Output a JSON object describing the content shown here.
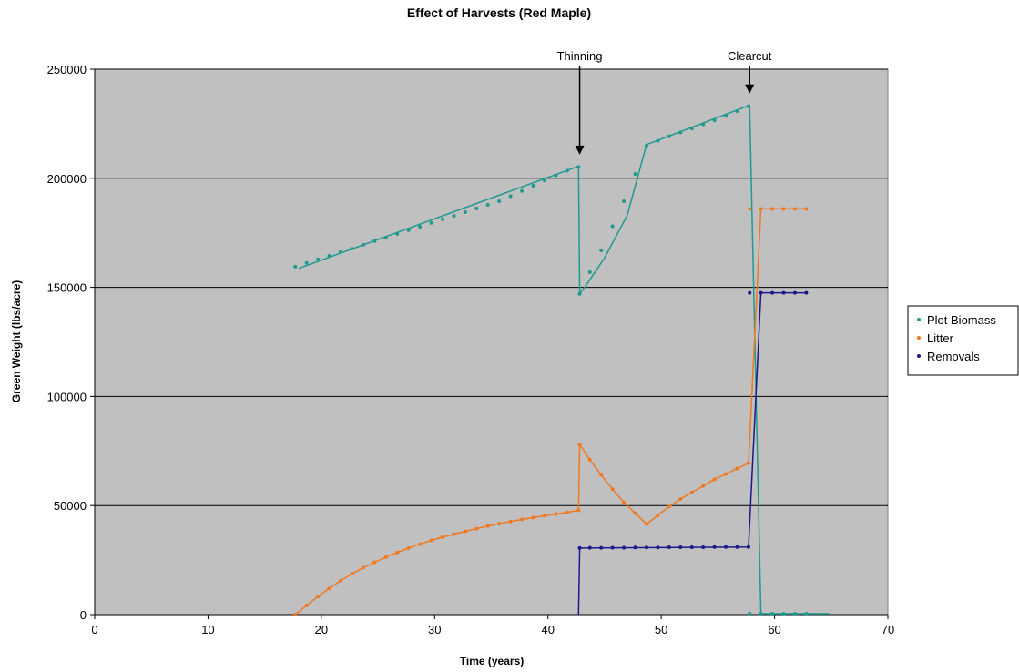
{
  "chart_data": {
    "type": "line",
    "title": "Effect of Harvests (Red Maple)",
    "xlabel": "Time (years)",
    "ylabel": "Green Weight (lbs/acre)",
    "xlim": [
      0,
      70
    ],
    "ylim": [
      0,
      250000
    ],
    "x_ticks": [
      0,
      10,
      20,
      30,
      40,
      50,
      60,
      70
    ],
    "y_ticks": [
      0,
      50000,
      100000,
      150000,
      200000,
      250000
    ],
    "grid": "horizontal",
    "legend": "right",
    "plot_background": "#c0c0c0",
    "annotations": [
      {
        "text": "Thinning",
        "x": 42.8,
        "y": 205000
      },
      {
        "text": "Clearcut",
        "x": 57.8,
        "y": 233000
      }
    ],
    "series": [
      {
        "name": "Plot Biomass",
        "color": "#1f9a8f",
        "points": [
          [
            17.7,
            159500
          ],
          [
            18.7,
            161200
          ],
          [
            19.7,
            162800
          ],
          [
            20.7,
            164500
          ],
          [
            21.7,
            166200
          ],
          [
            22.7,
            167800
          ],
          [
            23.7,
            169500
          ],
          [
            24.7,
            171200
          ],
          [
            25.7,
            172800
          ],
          [
            26.7,
            174500
          ],
          [
            27.7,
            176200
          ],
          [
            28.7,
            177800
          ],
          [
            29.7,
            179500
          ],
          [
            30.7,
            181200
          ],
          [
            31.7,
            182800
          ],
          [
            32.7,
            184500
          ],
          [
            33.7,
            186200
          ],
          [
            34.7,
            187800
          ],
          [
            35.7,
            189500
          ],
          [
            36.7,
            191800
          ],
          [
            37.7,
            194200
          ],
          [
            38.7,
            196600
          ],
          [
            39.7,
            199000
          ],
          [
            40.7,
            201300
          ],
          [
            41.7,
            203500
          ],
          [
            42.7,
            205200
          ],
          [
            42.8,
            147000
          ],
          [
            43.7,
            157000
          ],
          [
            44.7,
            167000
          ],
          [
            45.7,
            178000
          ],
          [
            46.7,
            189500
          ],
          [
            47.7,
            202000
          ],
          [
            48.7,
            215000
          ],
          [
            49.7,
            217200
          ],
          [
            50.7,
            219200
          ],
          [
            51.7,
            221000
          ],
          [
            52.7,
            222800
          ],
          [
            53.7,
            224700
          ],
          [
            54.7,
            226600
          ],
          [
            55.7,
            228600
          ],
          [
            56.7,
            230800
          ],
          [
            57.7,
            233000
          ],
          [
            57.8,
            400
          ],
          [
            58.8,
            400
          ],
          [
            59.8,
            400
          ],
          [
            60.8,
            400
          ],
          [
            61.8,
            400
          ],
          [
            62.8,
            400
          ]
        ],
        "line": [
          [
            18,
            158700
          ],
          [
            42.7,
            205500
          ],
          [
            42.8,
            147000
          ],
          [
            43.3,
            150500
          ],
          [
            45,
            163500
          ],
          [
            47,
            183000
          ],
          [
            48.7,
            215500
          ],
          [
            49.5,
            217000
          ],
          [
            57.8,
            233500
          ],
          [
            58.8,
            400
          ],
          [
            64.8,
            400
          ]
        ]
      },
      {
        "name": "Litter",
        "color": "#f07820",
        "points": [
          [
            17.7,
            0
          ],
          [
            18.7,
            4200
          ],
          [
            19.7,
            8300
          ],
          [
            20.7,
            12000
          ],
          [
            21.7,
            15500
          ],
          [
            22.7,
            18700
          ],
          [
            23.7,
            21500
          ],
          [
            24.7,
            24000
          ],
          [
            25.7,
            26300
          ],
          [
            26.7,
            28500
          ],
          [
            27.7,
            30500
          ],
          [
            28.7,
            32300
          ],
          [
            29.7,
            34000
          ],
          [
            30.7,
            35500
          ],
          [
            31.7,
            36900
          ],
          [
            32.7,
            38200
          ],
          [
            33.7,
            39400
          ],
          [
            34.7,
            40600
          ],
          [
            35.7,
            41700
          ],
          [
            36.7,
            42700
          ],
          [
            37.7,
            43600
          ],
          [
            38.7,
            44500
          ],
          [
            39.7,
            45300
          ],
          [
            40.7,
            46100
          ],
          [
            41.7,
            46900
          ],
          [
            42.7,
            47800
          ],
          [
            42.8,
            78000
          ],
          [
            43.7,
            71000
          ],
          [
            44.7,
            64000
          ],
          [
            45.7,
            57500
          ],
          [
            46.7,
            51500
          ],
          [
            47.7,
            46500
          ],
          [
            48.7,
            41500
          ],
          [
            49.7,
            45500
          ],
          [
            50.7,
            49500
          ],
          [
            51.7,
            53000
          ],
          [
            52.7,
            56000
          ],
          [
            53.7,
            59000
          ],
          [
            54.7,
            62000
          ],
          [
            55.7,
            64500
          ],
          [
            56.7,
            67000
          ],
          [
            57.7,
            69500
          ],
          [
            57.8,
            186000
          ],
          [
            58.8,
            186000
          ],
          [
            59.8,
            186000
          ],
          [
            60.8,
            186000
          ],
          [
            61.8,
            186000
          ],
          [
            62.8,
            186000
          ]
        ],
        "line": [
          [
            17.7,
            0
          ],
          [
            18.7,
            4200
          ],
          [
            19.7,
            8300
          ],
          [
            20.7,
            12000
          ],
          [
            21.7,
            15500
          ],
          [
            22.7,
            18700
          ],
          [
            23.7,
            21500
          ],
          [
            24.7,
            24000
          ],
          [
            25.7,
            26300
          ],
          [
            26.7,
            28500
          ],
          [
            27.7,
            30500
          ],
          [
            28.7,
            32300
          ],
          [
            29.7,
            34000
          ],
          [
            30.7,
            35500
          ],
          [
            31.7,
            36900
          ],
          [
            32.7,
            38200
          ],
          [
            33.7,
            39400
          ],
          [
            34.7,
            40600
          ],
          [
            35.7,
            41700
          ],
          [
            36.7,
            42700
          ],
          [
            37.7,
            43600
          ],
          [
            38.7,
            44500
          ],
          [
            39.7,
            45300
          ],
          [
            40.7,
            46100
          ],
          [
            41.7,
            46900
          ],
          [
            42.7,
            47800
          ],
          [
            42.8,
            78000
          ],
          [
            43.7,
            71000
          ],
          [
            44.7,
            64000
          ],
          [
            45.7,
            57500
          ],
          [
            46.7,
            51500
          ],
          [
            47.7,
            46500
          ],
          [
            48.7,
            41500
          ],
          [
            49.7,
            45500
          ],
          [
            50.7,
            49500
          ],
          [
            51.7,
            53000
          ],
          [
            52.7,
            56000
          ],
          [
            53.7,
            59000
          ],
          [
            54.7,
            62000
          ],
          [
            55.7,
            64500
          ],
          [
            56.7,
            67000
          ],
          [
            57.7,
            69500
          ],
          [
            58.8,
            186000
          ],
          [
            59.8,
            186000
          ],
          [
            60.8,
            186000
          ],
          [
            61.8,
            186000
          ],
          [
            62.8,
            186000
          ]
        ]
      },
      {
        "name": "Removals",
        "color": "#1a1a8c",
        "points": [
          [
            42.8,
            30500
          ],
          [
            43.7,
            30600
          ],
          [
            44.7,
            30600
          ],
          [
            45.7,
            30700
          ],
          [
            46.7,
            30700
          ],
          [
            47.7,
            30800
          ],
          [
            48.7,
            30800
          ],
          [
            49.7,
            30800
          ],
          [
            50.7,
            30900
          ],
          [
            51.7,
            30900
          ],
          [
            52.7,
            30900
          ],
          [
            53.7,
            30900
          ],
          [
            54.7,
            31000
          ],
          [
            55.7,
            31000
          ],
          [
            56.7,
            31000
          ],
          [
            57.7,
            31000
          ],
          [
            57.8,
            147500
          ],
          [
            58.8,
            147500
          ],
          [
            59.8,
            147500
          ],
          [
            60.8,
            147500
          ],
          [
            61.8,
            147500
          ],
          [
            62.8,
            147500
          ]
        ],
        "line": [
          [
            42.7,
            0
          ],
          [
            42.8,
            30500
          ],
          [
            57.7,
            31000
          ],
          [
            58.8,
            147500
          ],
          [
            62.8,
            147500
          ]
        ]
      }
    ]
  }
}
